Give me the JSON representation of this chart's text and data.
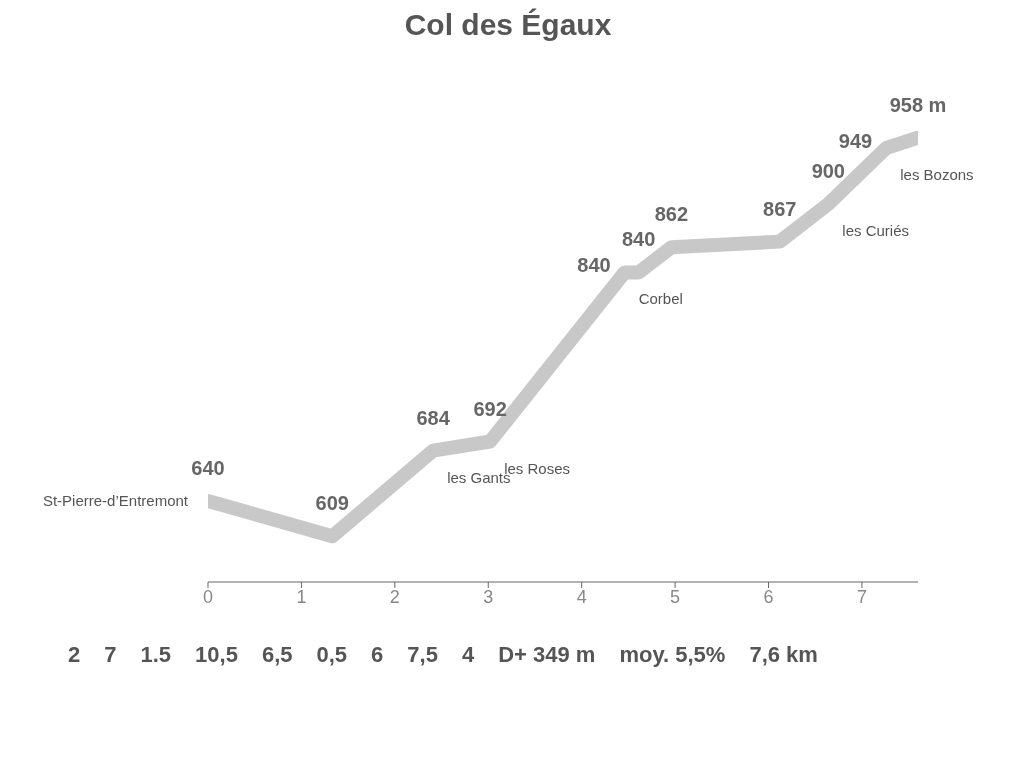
{
  "chart_data": {
    "type": "line",
    "title": "Col des Égaux",
    "x": [
      0,
      1.33,
      2.41,
      3.02,
      4.46,
      4.61,
      4.96,
      6.12,
      6.64,
      7.26,
      7.6
    ],
    "series": [
      {
        "color": "#c8c8c8",
        "values": [
          640,
          609,
          684,
          692,
          840,
          840,
          862,
          867,
          900,
          949,
          958
        ],
        "value_labels": [
          "640",
          "609",
          "684",
          "692",
          "840",
          "840",
          "862",
          "867",
          "900",
          "949",
          "958 m"
        ]
      }
    ],
    "xlim": [
      0,
      7.6
    ],
    "xticks": [
      0,
      1,
      2,
      3,
      4,
      5,
      6,
      7
    ],
    "tick_labels": "x",
    "annotations": [
      {
        "text": "St-Pierre-d’Entremont",
        "x": 0,
        "y": 640
      },
      {
        "text": "les Gants",
        "x": 2.41,
        "y": 684
      },
      {
        "text": "les Roses",
        "x": 3.02,
        "y": 692
      },
      {
        "text": "Corbel",
        "x": 4.46,
        "y": 840
      },
      {
        "text": "les Curiés",
        "x": 6.64,
        "y": 900
      },
      {
        "text": "les Bozons",
        "x": 7.26,
        "y": 949
      },
      "2",
      "7",
      "1.5",
      "10,5",
      "6,5",
      "0,5",
      "6",
      "7,5",
      "4",
      "D+ 349 m",
      "moy. 5,5%",
      "7,6 km"
    ]
  }
}
